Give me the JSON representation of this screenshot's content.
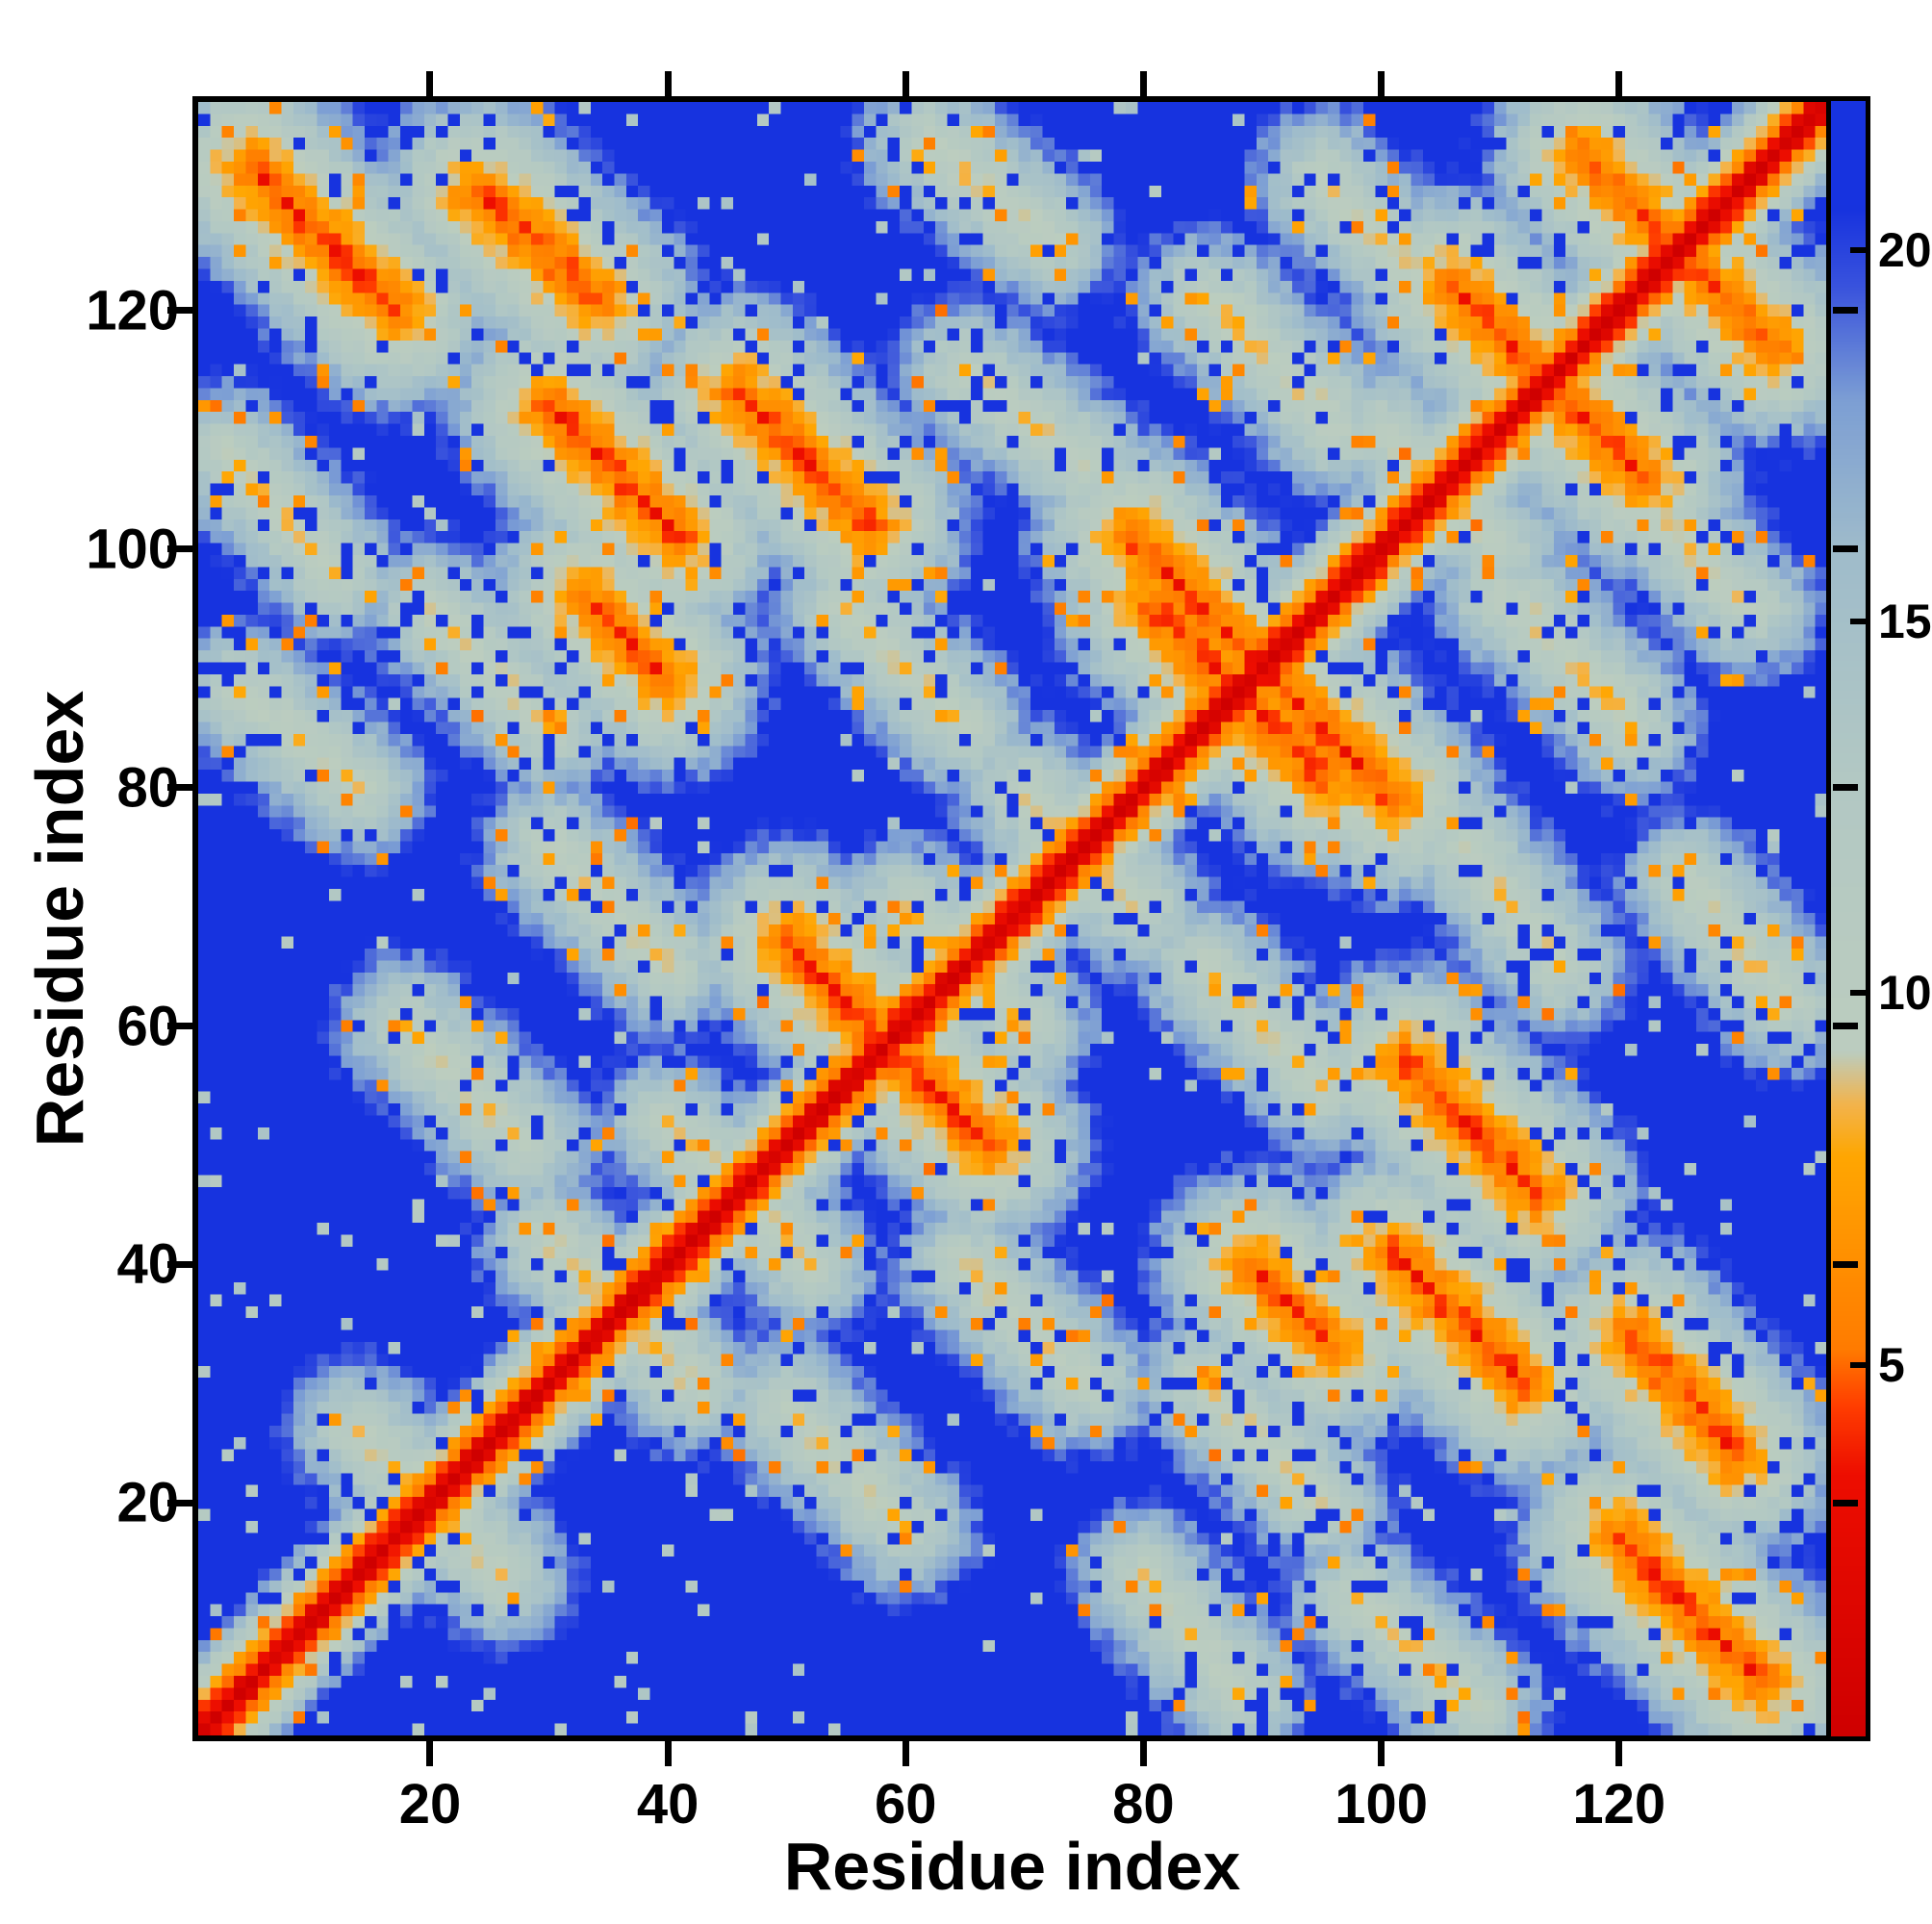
{
  "figure": {
    "background": "#ffffff",
    "frame_color": "#000000"
  },
  "chart_data": {
    "type": "heatmap",
    "title": "",
    "xlabel": "Residue index",
    "ylabel": "Residue index",
    "x_range": [
      1,
      137
    ],
    "y_range": [
      1,
      137
    ],
    "x_ticks": [
      20,
      40,
      60,
      80,
      100,
      120
    ],
    "y_ticks": [
      20,
      40,
      60,
      80,
      100,
      120
    ],
    "grid": false,
    "legend": "none",
    "colorbar": {
      "position": "right",
      "min": 0,
      "max": 22,
      "ticks": [
        5,
        10,
        15,
        20
      ]
    },
    "colormap_stops": [
      [
        0.0,
        "#cf0000"
      ],
      [
        3.5,
        "#ee0e00"
      ],
      [
        4.4,
        "#ff3c00"
      ],
      [
        5.2,
        "#ff7c00"
      ],
      [
        7.8,
        "#ffa702"
      ],
      [
        8.5,
        "#f3b44d"
      ],
      [
        9.2,
        "#bccdbf"
      ],
      [
        13.0,
        "#b2c8c4"
      ],
      [
        16.0,
        "#9fbccb"
      ],
      [
        18.0,
        "#7d9fd4"
      ],
      [
        19.5,
        "#3b55dd"
      ],
      [
        20.6,
        "#1733df"
      ],
      [
        22.0,
        "#1733df"
      ]
    ],
    "matrix_model": {
      "n": 137,
      "symmetric": true,
      "description": "inter-residue distance map: red main diagonal, antiparallel contact streaks (orange), pale mid-range halos, blue = distant",
      "diagonal_slope": 2.6,
      "contact_slope": 1.7,
      "noise_seed": 20240613,
      "jitter": 2.4,
      "contacts": [
        [
          5,
          132,
          17,
          120,
          4.0
        ],
        [
          24,
          130,
          34,
          121,
          4.0
        ],
        [
          30,
          112,
          41,
          101,
          4.0
        ],
        [
          46,
          113,
          57,
          102,
          4.0
        ],
        [
          33,
          96,
          40,
          89,
          4.4
        ],
        [
          50,
          67,
          58,
          59,
          4.0
        ],
        [
          79,
          101,
          89,
          91,
          4.0
        ],
        [
          86,
          90,
          95,
          81,
          4.0
        ],
        [
          106,
          122,
          117,
          111,
          4.0
        ],
        [
          117,
          133,
          124,
          126,
          4.4
        ],
        [
          3,
          108,
          12,
          98,
          8.8
        ],
        [
          62,
          134,
          72,
          126,
          8.8
        ],
        [
          95,
          131,
          104,
          122,
          8.8
        ],
        [
          70,
          79,
          80,
          70,
          9.0
        ],
        [
          18,
          60,
          28,
          50,
          8.8
        ],
        [
          40,
          52,
          50,
          42,
          8.8
        ],
        [
          85,
          121,
          95,
          112,
          8.8
        ],
        [
          110,
          96,
          120,
          87,
          8.8
        ],
        [
          4,
          88,
          14,
          80,
          8.8
        ],
        [
          55,
          95,
          65,
          85,
          8.8
        ],
        [
          20,
          95,
          30,
          85,
          8.8
        ],
        [
          65,
          115,
          75,
          107,
          8.8
        ],
        [
          100,
          110,
          110,
          100,
          9.0
        ],
        [
          30,
          75,
          40,
          65,
          8.8
        ],
        [
          14,
          26,
          22,
          18,
          8.6
        ],
        [
          30,
          42,
          38,
          34,
          8.6
        ],
        [
          60,
          70,
          68,
          62,
          8.8
        ]
      ]
    }
  }
}
